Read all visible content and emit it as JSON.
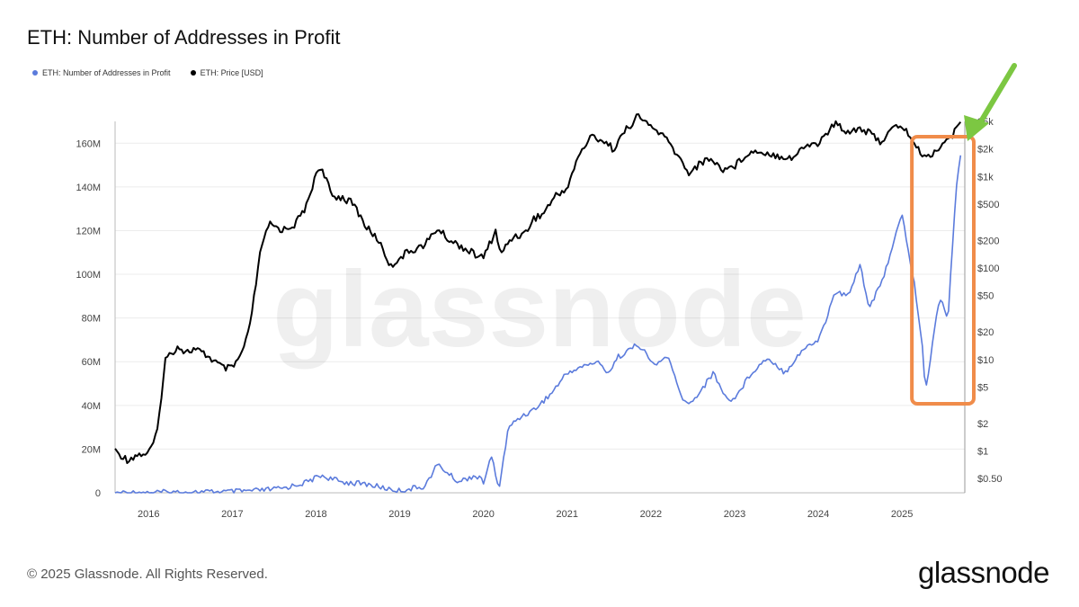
{
  "title": "ETH: Number of Addresses in Profit",
  "watermark": "glassnode",
  "footer": {
    "copyright": "© 2025 Glassnode. All Rights Reserved.",
    "logo": "glassnode"
  },
  "colors": {
    "addresses": "#5b7bdc",
    "price": "#000000",
    "highlight": "#f08c4a",
    "arrow": "#7cc742",
    "grid": "#ececec"
  },
  "chart_data": {
    "type": "line",
    "title": "ETH: Number of Addresses in Profit",
    "x_ticks": [
      "2016",
      "2017",
      "2018",
      "2019",
      "2020",
      "2021",
      "2022",
      "2023",
      "2024",
      "2025"
    ],
    "x_range": [
      2015.6,
      2025.75
    ],
    "y_left": {
      "range": [
        0,
        170
      ],
      "ticks": [
        "0",
        "20M",
        "40M",
        "60M",
        "80M",
        "100M",
        "120M",
        "140M",
        "160M"
      ],
      "tick_values": [
        0,
        20,
        40,
        60,
        80,
        100,
        120,
        140,
        160
      ],
      "unit": "M"
    },
    "y_right": {
      "scale": "log",
      "range": [
        0.35,
        4000
      ],
      "ticks": [
        "$0.50",
        "$1",
        "$2",
        "$5",
        "$10",
        "$20",
        "$50",
        "$100",
        "$200",
        "$500",
        "$1k",
        "$2k",
        "$5k"
      ],
      "tick_values": [
        0.5,
        1,
        2,
        5,
        10,
        20,
        50,
        100,
        200,
        500,
        1000,
        2000,
        4000
      ]
    },
    "legend": "top-left",
    "grid": true,
    "series": [
      {
        "name": "ETH: Number of Addresses in Profit",
        "axis": "left",
        "x": [
          2015.6,
          2016.0,
          2016.5,
          2017.0,
          2017.3,
          2017.6,
          2017.9,
          2018.05,
          2018.3,
          2018.6,
          2018.9,
          2019.0,
          2019.3,
          2019.45,
          2019.7,
          2019.9,
          2020.0,
          2020.1,
          2020.18,
          2020.3,
          2020.45,
          2020.6,
          2020.8,
          2021.0,
          2021.2,
          2021.35,
          2021.5,
          2021.6,
          2021.85,
          2022.05,
          2022.2,
          2022.35,
          2022.45,
          2022.6,
          2022.75,
          2022.9,
          2023.0,
          2023.2,
          2023.4,
          2023.6,
          2023.8,
          2024.0,
          2024.1,
          2024.2,
          2024.35,
          2024.5,
          2024.6,
          2024.75,
          2024.9,
          2025.0,
          2025.08,
          2025.15,
          2025.25,
          2025.28,
          2025.35,
          2025.45,
          2025.55,
          2025.58,
          2025.65,
          2025.7
        ],
        "values": [
          0,
          0.2,
          0.3,
          0.5,
          1,
          2,
          5,
          8,
          5,
          4,
          1.5,
          1,
          3,
          13,
          5,
          8,
          5,
          17,
          1,
          30,
          35,
          38,
          45,
          55,
          58,
          60,
          55,
          62,
          68,
          58,
          63,
          45,
          40,
          47,
          55,
          43,
          43,
          55,
          62,
          55,
          65,
          70,
          80,
          92,
          90,
          105,
          85,
          95,
          115,
          127,
          110,
          95,
          65,
          45,
          65,
          90,
          80,
          100,
          140,
          155
        ]
      },
      {
        "name": "ETH: Price [USD]",
        "axis": "right",
        "x": [
          2015.6,
          2015.75,
          2015.85,
          2016.0,
          2016.1,
          2016.2,
          2016.35,
          2016.45,
          2016.55,
          2016.7,
          2016.9,
          2017.0,
          2017.1,
          2017.2,
          2017.35,
          2017.45,
          2017.6,
          2017.75,
          2017.9,
          2018.0,
          2018.05,
          2018.2,
          2018.3,
          2018.45,
          2018.6,
          2018.75,
          2018.9,
          2018.95,
          2019.1,
          2019.3,
          2019.45,
          2019.6,
          2019.75,
          2019.9,
          2020.0,
          2020.15,
          2020.2,
          2020.35,
          2020.5,
          2020.6,
          2020.7,
          2020.85,
          2021.0,
          2021.15,
          2021.3,
          2021.45,
          2021.55,
          2021.7,
          2021.85,
          2022.0,
          2022.15,
          2022.3,
          2022.45,
          2022.55,
          2022.7,
          2022.85,
          2023.0,
          2023.15,
          2023.3,
          2023.5,
          2023.7,
          2023.85,
          2024.0,
          2024.2,
          2024.35,
          2024.5,
          2024.6,
          2024.75,
          2024.9,
          2025.0,
          2025.1,
          2025.2,
          2025.3,
          2025.4,
          2025.5,
          2025.6,
          2025.7
        ],
        "values": [
          1.0,
          0.8,
          0.9,
          0.95,
          1.5,
          10,
          14,
          12,
          13,
          11,
          8,
          8,
          11,
          20,
          180,
          300,
          260,
          300,
          500,
          1100,
          1300,
          600,
          600,
          500,
          280,
          200,
          100,
          120,
          150,
          180,
          270,
          200,
          170,
          140,
          130,
          260,
          140,
          220,
          240,
          350,
          380,
          600,
          750,
          1800,
          2800,
          2400,
          2000,
          3200,
          4600,
          3500,
          2800,
          1800,
          1100,
          1300,
          1600,
          1200,
          1300,
          1800,
          1900,
          1700,
          1600,
          2200,
          2300,
          3800,
          3100,
          3400,
          3000,
          2400,
          3400,
          3600,
          2700,
          1900,
          1600,
          1900,
          2400,
          2700,
          4200
        ]
      }
    ],
    "annotations": [
      {
        "type": "box",
        "x_range": [
          2025.15,
          2025.75
        ],
        "color": "orange"
      },
      {
        "type": "arrow",
        "points_to": "latest price",
        "color": "green"
      }
    ]
  }
}
